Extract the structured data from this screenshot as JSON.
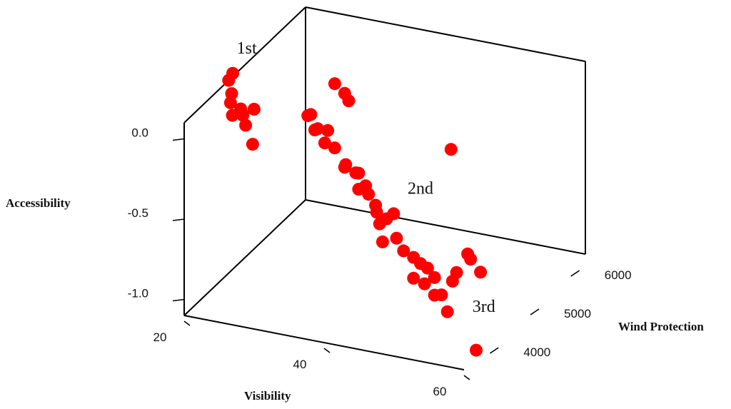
{
  "chart_data": {
    "type": "scatter",
    "projection": "3d",
    "xlabel": "Visibility",
    "ylabel": "Wind Protection",
    "zlabel": "Accessibility",
    "xticks": [
      20,
      40,
      60
    ],
    "yticks": [
      4000,
      5000,
      6000
    ],
    "zticks": [
      "0.0",
      "-0.5",
      "-1.0"
    ],
    "grid": false,
    "legend": "none",
    "marker_color": "#ff0000",
    "annotations": [
      {
        "text": "1st"
      },
      {
        "text": "2nd"
      },
      {
        "text": "3rd"
      }
    ],
    "points": [
      {
        "visibility": 20,
        "wind": 4600,
        "accessibility": 0.1
      },
      {
        "visibility": 20,
        "wind": 4700,
        "accessibility": 0.12
      },
      {
        "visibility": 21,
        "wind": 4500,
        "accessibility": 0.05
      },
      {
        "visibility": 22,
        "wind": 4300,
        "accessibility": 0.05
      },
      {
        "visibility": 24,
        "wind": 4000,
        "accessibility": 0.06
      },
      {
        "visibility": 22,
        "wind": 4600,
        "accessibility": -0.1
      },
      {
        "visibility": 23,
        "wind": 4500,
        "accessibility": -0.13
      },
      {
        "visibility": 20,
        "wind": 4900,
        "accessibility": -0.15
      },
      {
        "visibility": 24,
        "wind": 4500,
        "accessibility": -0.24
      },
      {
        "visibility": 18,
        "wind": 5300,
        "accessibility": -0.3
      },
      {
        "visibility": 19,
        "wind": 5400,
        "accessibility": -0.28
      },
      {
        "visibility": 34,
        "wind": 4800,
        "accessibility": 0.15
      },
      {
        "visibility": 36,
        "wind": 4700,
        "accessibility": 0.13
      },
      {
        "visibility": 36,
        "wind": 4800,
        "accessibility": 0.06
      },
      {
        "visibility": 30,
        "wind": 4900,
        "accessibility": -0.1
      },
      {
        "visibility": 29,
        "wind": 5000,
        "accessibility": -0.14
      },
      {
        "visibility": 31,
        "wind": 4900,
        "accessibility": -0.18
      },
      {
        "visibility": 33,
        "wind": 4800,
        "accessibility": -0.15
      },
      {
        "visibility": 30,
        "wind": 5000,
        "accessibility": -0.22
      },
      {
        "visibility": 32,
        "wind": 4900,
        "accessibility": -0.26
      },
      {
        "visibility": 34,
        "wind": 4800,
        "accessibility": -0.25
      },
      {
        "visibility": 36,
        "wind": 4700,
        "accessibility": -0.33
      },
      {
        "visibility": 38,
        "wind": 4700,
        "accessibility": -0.35
      },
      {
        "visibility": 37,
        "wind": 4800,
        "accessibility": -0.38
      },
      {
        "visibility": 35,
        "wind": 4900,
        "accessibility": -0.37
      },
      {
        "visibility": 39,
        "wind": 4700,
        "accessibility": -0.42
      },
      {
        "visibility": 40,
        "wind": 4600,
        "accessibility": -0.44
      },
      {
        "visibility": 38,
        "wind": 4700,
        "accessibility": -0.45
      },
      {
        "visibility": 41,
        "wind": 4600,
        "accessibility": -0.5
      },
      {
        "visibility": 43,
        "wind": 4700,
        "accessibility": -0.56
      },
      {
        "visibility": 42,
        "wind": 4700,
        "accessibility": -0.6
      },
      {
        "visibility": 40,
        "wind": 4800,
        "accessibility": -0.6
      },
      {
        "visibility": 41,
        "wind": 4700,
        "accessibility": -0.64
      },
      {
        "visibility": 44,
        "wind": 4600,
        "accessibility": -0.68
      },
      {
        "visibility": 42,
        "wind": 4600,
        "accessibility": -0.72
      },
      {
        "visibility": 45,
        "wind": 4600,
        "accessibility": -0.75
      },
      {
        "visibility": 47,
        "wind": 4500,
        "accessibility": -0.75
      },
      {
        "visibility": 48,
        "wind": 4500,
        "accessibility": -0.78
      },
      {
        "visibility": 49,
        "wind": 4500,
        "accessibility": -0.8
      },
      {
        "visibility": 50,
        "wind": 4500,
        "accessibility": -0.85
      },
      {
        "visibility": 47,
        "wind": 4500,
        "accessibility": -0.88
      },
      {
        "visibility": 48,
        "wind": 4600,
        "accessibility": -0.93
      },
      {
        "visibility": 50,
        "wind": 4500,
        "accessibility": -0.96
      },
      {
        "visibility": 51,
        "wind": 4500,
        "accessibility": -0.95
      },
      {
        "visibility": 53,
        "wind": 4300,
        "accessibility": -0.99
      },
      {
        "visibility": 52,
        "wind": 4600,
        "accessibility": -0.88
      },
      {
        "visibility": 52,
        "wind": 4700,
        "accessibility": -0.85
      },
      {
        "visibility": 53,
        "wind": 4800,
        "accessibility": -0.75
      },
      {
        "visibility": 54,
        "wind": 4700,
        "accessibility": -0.75
      },
      {
        "visibility": 56,
        "wind": 4600,
        "accessibility": -0.79
      },
      {
        "visibility": 46,
        "wind": 5600,
        "accessibility": -0.35
      },
      {
        "visibility": 60,
        "wind": 3800,
        "accessibility": -1.05
      }
    ]
  }
}
